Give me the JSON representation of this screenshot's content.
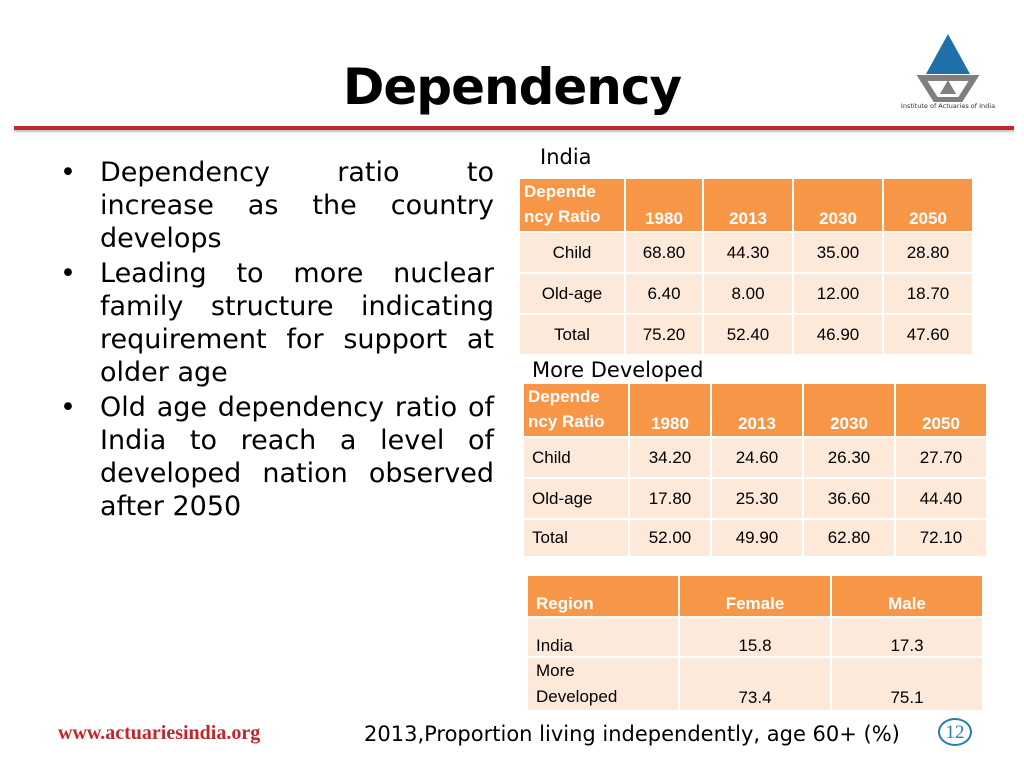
{
  "slide": {
    "title": "Dependency",
    "logo_text": "Institute of Actuaries of India",
    "bullet_symbol": "•",
    "bullets": [
      "Dependency ratio to increase as the country develops",
      "Leading to more nuclear family structure indicating requirement for support at older age",
      "Old age dependency ratio of India to reach a level of developed nation observed after 2050"
    ],
    "footer_url": "www.actuariesindia.org",
    "caption": "2013,Proportion living independently, age 60+ (%)",
    "page_number": "12",
    "colors": {
      "accent": "#c0272d",
      "header": "#f79646",
      "cell": "#fde9d9",
      "logo_blue": "#1f6fa8",
      "logo_grey": "#7f7f7f"
    }
  },
  "india": {
    "label": "India",
    "header_line1": "Depende",
    "header_line2": "ncy Ratio",
    "years": [
      "1980",
      "2013",
      "2030",
      "2050"
    ],
    "rows": [
      {
        "name": "Child",
        "values": [
          "68.80",
          "44.30",
          "35.00",
          "28.80"
        ]
      },
      {
        "name": "Old-age",
        "values": [
          "6.40",
          "8.00",
          "12.00",
          "18.70"
        ]
      },
      {
        "name": "Total",
        "values": [
          "75.20",
          "52.40",
          "46.90",
          "47.60"
        ]
      }
    ]
  },
  "developed": {
    "label": "More Developed",
    "header_line1": "Depende",
    "header_line2": "ncy Ratio",
    "years": [
      "1980",
      "2013",
      "2030",
      "2050"
    ],
    "rows": [
      {
        "name": "Child",
        "values": [
          "34.20",
          "24.60",
          "26.30",
          "27.70"
        ]
      },
      {
        "name": "Old-age",
        "values": [
          "17.80",
          "25.30",
          "36.60",
          "44.40"
        ]
      },
      {
        "name": "Total",
        "values": [
          "52.00",
          "49.90",
          "62.80",
          "72.10"
        ]
      }
    ]
  },
  "independent": {
    "headers": [
      "Region",
      "Female",
      "Male"
    ],
    "rows": [
      {
        "region_line1": "India",
        "region_line2": "",
        "female": "15.8",
        "male": "17.3"
      },
      {
        "region_line1": "More",
        "region_line2": "Developed",
        "female": "73.4",
        "male": "75.1"
      }
    ]
  }
}
